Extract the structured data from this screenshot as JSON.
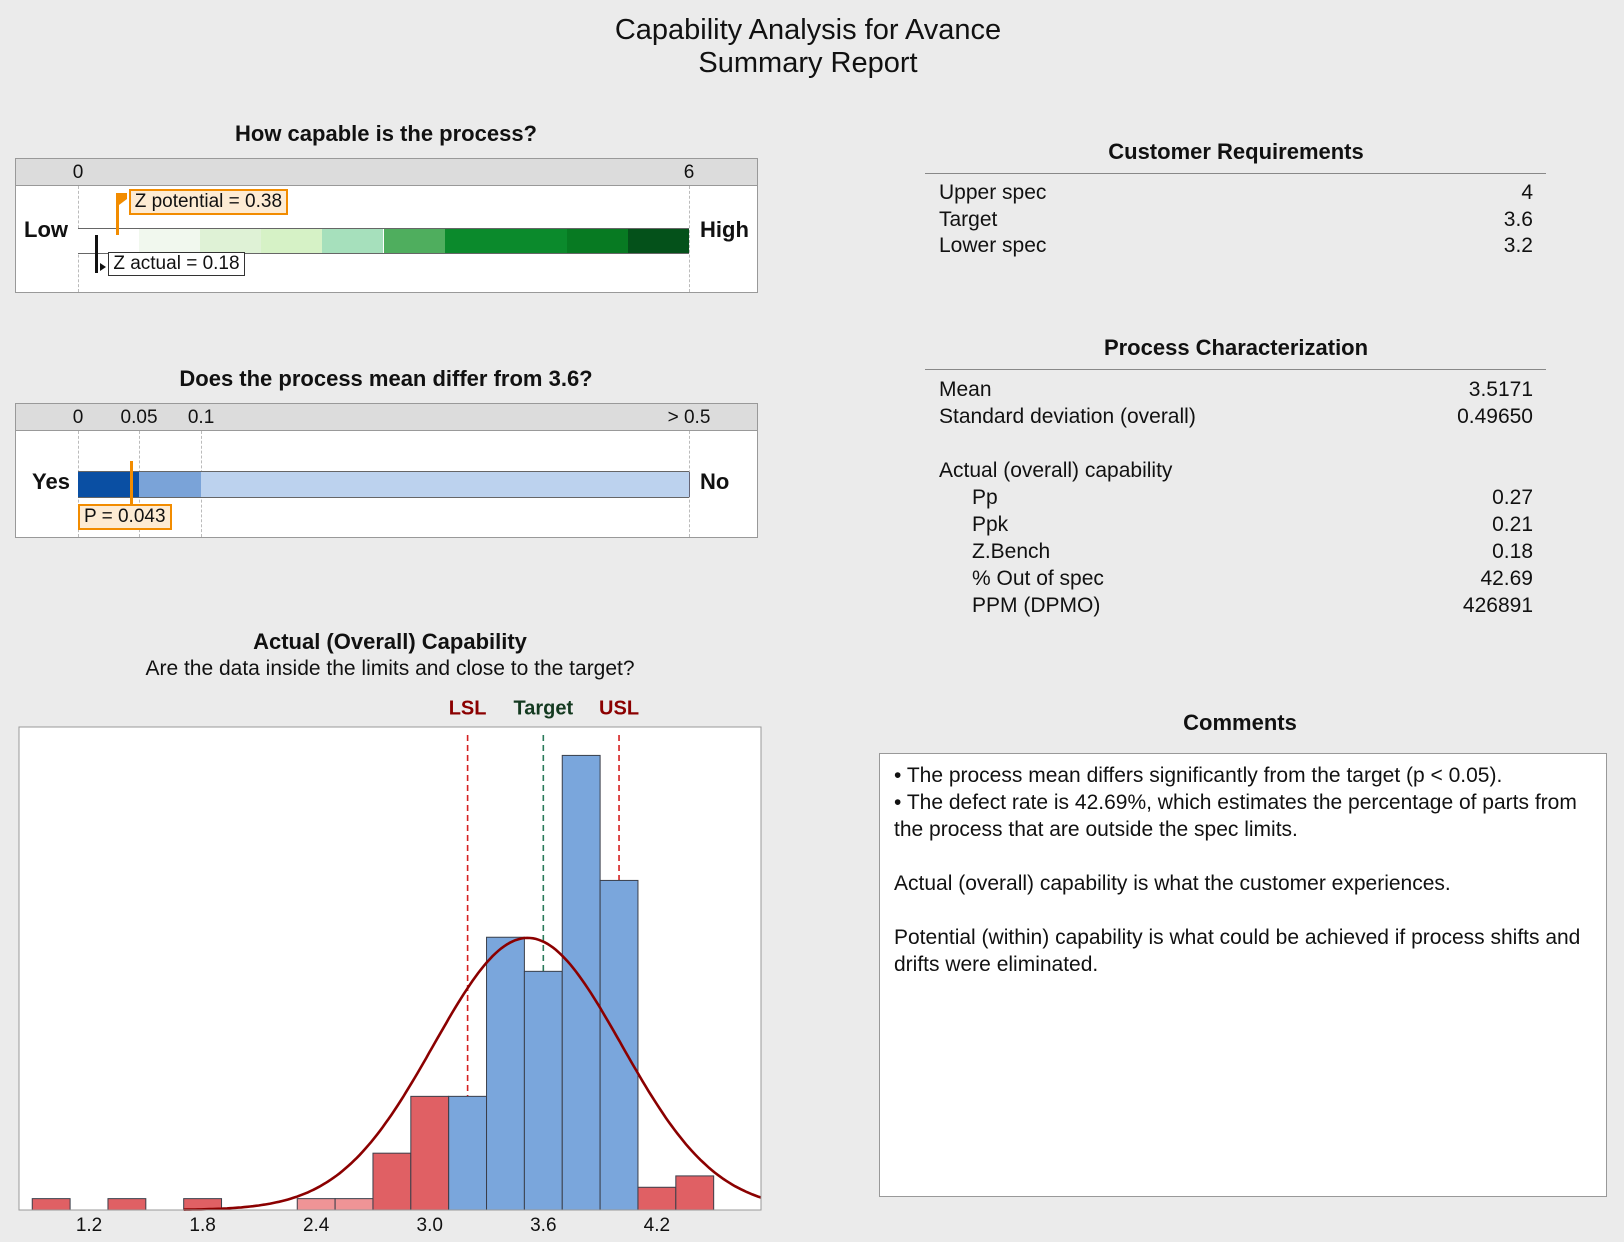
{
  "title": {
    "line1": "Capability Analysis for Avance",
    "line2": "Summary Report"
  },
  "capable": {
    "heading": "How capable is the process?",
    "scale_min_label": "0",
    "scale_max_label": "6",
    "scale_min": 0,
    "scale_max": 6,
    "low_label": "Low",
    "high_label": "High",
    "z_potential": 0.38,
    "z_potential_label": "Z potential = 0.38",
    "z_actual": 0.18,
    "z_actual_label": "Z actual = 0.18",
    "bands": [
      {
        "from": 0,
        "to": 0.6,
        "color": "#ffffff"
      },
      {
        "from": 0.6,
        "to": 1.2,
        "color": "#f1f8ee"
      },
      {
        "from": 1.2,
        "to": 1.8,
        "color": "#dff2d6"
      },
      {
        "from": 1.8,
        "to": 2.4,
        "color": "#d6f2c6"
      },
      {
        "from": 2.4,
        "to": 3.0,
        "color": "#a6e0bc"
      },
      {
        "from": 3.0,
        "to": 3.6,
        "color": "#4fae5e"
      },
      {
        "from": 3.6,
        "to": 4.8,
        "color": "#0b8a2c"
      },
      {
        "from": 4.8,
        "to": 5.4,
        "color": "#077a22"
      },
      {
        "from": 5.4,
        "to": 6.0,
        "color": "#04511a"
      }
    ],
    "accent": "#f28c00"
  },
  "mean_test": {
    "heading": "Does the process mean differ from 3.6?",
    "ticks": [
      {
        "label": "0",
        "value": 0
      },
      {
        "label": "0.05",
        "value": 0.05
      },
      {
        "label": "0.1",
        "value": 0.1
      },
      {
        "label": "> 0.5",
        "value": 0.5
      }
    ],
    "yes_label": "Yes",
    "no_label": "No",
    "p_value": 0.043,
    "p_label": "P = 0.043",
    "bands": [
      {
        "from": 0,
        "to": 0.05,
        "color": "#0a4fa3"
      },
      {
        "from": 0.05,
        "to": 0.1,
        "color": "#7aa3d8"
      },
      {
        "from": 0.1,
        "to": 0.5,
        "color": "#bcd2ee"
      }
    ]
  },
  "histogram": {
    "heading": "Actual (Overall) Capability",
    "subheading": "Are the data inside the limits and close to the target?"
  },
  "chart_data": {
    "type": "bar",
    "title": "Actual (Overall) Capability",
    "subtitle": "Are the data inside the limits and close to the target?",
    "xlabel": "",
    "ylabel": "",
    "xlim": [
      0.83,
      4.75
    ],
    "ylim": [
      0,
      42.5
    ],
    "x_ticks": [
      1.2,
      1.8,
      2.4,
      3.0,
      3.6,
      4.2
    ],
    "x_tick_labels": [
      "1.2",
      "1.8",
      "2.4",
      "3.0",
      "3.6",
      "4.2"
    ],
    "bin_width": 0.2,
    "bins": [
      {
        "start": 0.9,
        "count": 1,
        "status": "out"
      },
      {
        "start": 1.3,
        "count": 1,
        "status": "out"
      },
      {
        "start": 1.7,
        "count": 1,
        "status": "out"
      },
      {
        "start": 2.3,
        "count": 1,
        "status": "out-light"
      },
      {
        "start": 2.5,
        "count": 1,
        "status": "out-light"
      },
      {
        "start": 2.7,
        "count": 5,
        "status": "out"
      },
      {
        "start": 2.9,
        "count": 10,
        "status": "out"
      },
      {
        "start": 3.1,
        "count": 10,
        "status": "in"
      },
      {
        "start": 3.3,
        "count": 24,
        "status": "in"
      },
      {
        "start": 3.5,
        "count": 21,
        "status": "in"
      },
      {
        "start": 3.7,
        "count": 40,
        "status": "in"
      },
      {
        "start": 3.9,
        "count": 29,
        "status": "in"
      },
      {
        "start": 4.1,
        "count": 2,
        "status": "out"
      },
      {
        "start": 4.3,
        "count": 3,
        "status": "out"
      }
    ],
    "normal_curve": {
      "mean": 3.5171,
      "sd": 0.4965,
      "n": 149,
      "color": "#8b0000"
    },
    "ref_lines": [
      {
        "label": "LSL",
        "value": 3.2,
        "color": "#d42020",
        "label_color": "#8b0000"
      },
      {
        "label": "Target",
        "value": 3.6,
        "color": "#2a7a5a",
        "label_color": "#143a20"
      },
      {
        "label": "USL",
        "value": 4.0,
        "color": "#d42020",
        "label_color": "#8b0000"
      }
    ],
    "colors": {
      "in": "#7aa6dc",
      "out": "#e06064",
      "out-light": "#ef9496"
    }
  },
  "customer": {
    "heading": "Customer Requirements",
    "rows": [
      {
        "label": "Upper spec",
        "value": "4"
      },
      {
        "label": "Target",
        "value": "3.6"
      },
      {
        "label": "Lower spec",
        "value": "3.2"
      }
    ]
  },
  "process": {
    "heading": "Process Characterization",
    "mean_label": "Mean",
    "mean": "3.5171",
    "sd_label": "Standard deviation (overall)",
    "sd": "0.49650",
    "section_label": "Actual (overall) capability",
    "rows": [
      {
        "label": "Pp",
        "value": "0.27"
      },
      {
        "label": "Ppk",
        "value": "0.21"
      },
      {
        "label": "Z.Bench",
        "value": "0.18"
      },
      {
        "label": "% Out of spec",
        "value": "42.69"
      },
      {
        "label": "PPM (DPMO)",
        "value": "426891"
      }
    ]
  },
  "comments": {
    "heading": "Comments",
    "bullets": [
      "The process mean differs significantly from the target (p < 0.05).",
      "The defect rate is 42.69%, which estimates the percentage of parts from the process that are outside the spec limits."
    ],
    "paragraphs": [
      "Actual (overall) capability is what the customer experiences.",
      "Potential (within) capability is what could be achieved if process shifts and drifts were eliminated."
    ]
  }
}
